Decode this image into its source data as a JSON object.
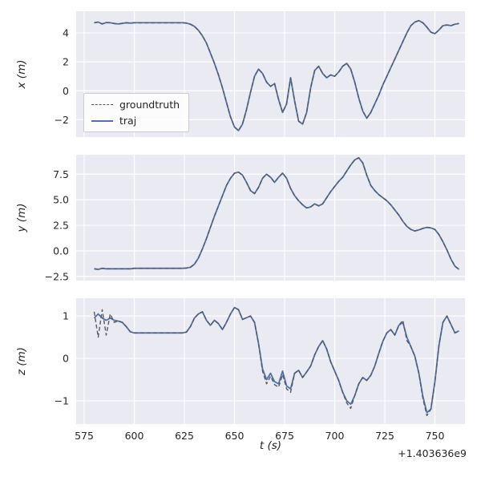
{
  "figure": {
    "background": "#ffffff",
    "axes_background": "#eaeaf2",
    "grid_color": "#ffffff",
    "tick_color": "#262626",
    "xlabel": "t (s)",
    "offset_text": "+1.403636e9",
    "legend": {
      "items": [
        {
          "label": "groundtruth",
          "color": "#5a5a5a",
          "dashed": true
        },
        {
          "label": "traj",
          "color": "#4c72b0",
          "dashed": false
        }
      ]
    }
  },
  "chart_data": [
    {
      "type": "line",
      "ylabel": "x (m)",
      "xlim": [
        571,
        765
      ],
      "ylim": [
        -3.2,
        5.5
      ],
      "xticks": [
        575,
        600,
        625,
        650,
        675,
        700,
        725,
        750
      ],
      "xtick_labels": [
        "575",
        "600",
        "625",
        "650",
        "675",
        "700",
        "725",
        "750"
      ],
      "yticks": [
        -2,
        0,
        2,
        4
      ],
      "ytick_labels": [
        "−2",
        "0",
        "2",
        "4"
      ],
      "show_xtick_labels": false,
      "x": [
        580,
        582,
        584,
        586,
        588,
        590,
        592,
        594,
        596,
        598,
        600,
        602,
        604,
        606,
        608,
        610,
        612,
        614,
        616,
        618,
        620,
        622,
        624,
        626,
        628,
        630,
        632,
        634,
        636,
        638,
        640,
        642,
        644,
        646,
        648,
        650,
        652,
        654,
        656,
        658,
        660,
        662,
        664,
        666,
        668,
        670,
        672,
        674,
        676,
        678,
        680,
        682,
        684,
        686,
        688,
        690,
        692,
        694,
        696,
        698,
        700,
        702,
        704,
        706,
        708,
        710,
        712,
        714,
        716,
        718,
        720,
        722,
        724,
        726,
        728,
        730,
        732,
        734,
        736,
        738,
        740,
        742,
        744,
        746,
        748,
        750,
        752,
        754,
        756,
        758,
        760,
        762
      ],
      "series": [
        {
          "name": "groundtruth",
          "color": "#5a5a5a",
          "dashed": true,
          "values": [
            4.7,
            4.75,
            4.62,
            4.72,
            4.7,
            4.65,
            4.62,
            4.66,
            4.7,
            4.68,
            4.7,
            4.7,
            4.7,
            4.7,
            4.7,
            4.7,
            4.7,
            4.7,
            4.7,
            4.7,
            4.7,
            4.7,
            4.7,
            4.68,
            4.6,
            4.45,
            4.18,
            3.8,
            3.3,
            2.6,
            1.9,
            1.1,
            0.2,
            -0.8,
            -1.8,
            -2.5,
            -2.75,
            -2.3,
            -1.3,
            -0.1,
            1.0,
            1.5,
            1.2,
            0.6,
            0.3,
            0.5,
            -0.6,
            -1.5,
            -0.9,
            0.9,
            -0.7,
            -2.1,
            -2.3,
            -1.5,
            0.2,
            1.4,
            1.7,
            1.2,
            0.9,
            1.1,
            1.0,
            1.3,
            1.7,
            1.9,
            1.5,
            0.6,
            -0.5,
            -1.4,
            -1.9,
            -1.5,
            -0.9,
            -0.3,
            0.4,
            1.0,
            1.6,
            2.2,
            2.8,
            3.4,
            4.0,
            4.5,
            4.75,
            4.85,
            4.7,
            4.4,
            4.05,
            3.95,
            4.2,
            4.5,
            4.55,
            4.5,
            4.6,
            4.65
          ]
        },
        {
          "name": "traj",
          "color": "#4c72b0",
          "dashed": false,
          "values": [
            4.7,
            4.75,
            4.62,
            4.72,
            4.7,
            4.65,
            4.62,
            4.66,
            4.7,
            4.68,
            4.7,
            4.7,
            4.7,
            4.7,
            4.7,
            4.7,
            4.7,
            4.7,
            4.7,
            4.7,
            4.7,
            4.7,
            4.7,
            4.68,
            4.6,
            4.45,
            4.18,
            3.8,
            3.3,
            2.6,
            1.9,
            1.1,
            0.2,
            -0.8,
            -1.8,
            -2.5,
            -2.75,
            -2.3,
            -1.3,
            -0.1,
            1.0,
            1.5,
            1.2,
            0.6,
            0.3,
            0.5,
            -0.6,
            -1.5,
            -0.9,
            0.9,
            -0.7,
            -2.1,
            -2.3,
            -1.5,
            0.2,
            1.4,
            1.7,
            1.2,
            0.9,
            1.1,
            1.0,
            1.3,
            1.7,
            1.9,
            1.5,
            0.6,
            -0.5,
            -1.4,
            -1.9,
            -1.5,
            -0.9,
            -0.3,
            0.4,
            1.0,
            1.6,
            2.2,
            2.8,
            3.4,
            4.0,
            4.5,
            4.75,
            4.85,
            4.7,
            4.4,
            4.05,
            3.95,
            4.2,
            4.5,
            4.55,
            4.5,
            4.6,
            4.65
          ]
        }
      ]
    },
    {
      "type": "line",
      "ylabel": "y (m)",
      "xlim": [
        571,
        765
      ],
      "ylim": [
        -2.9,
        9.4
      ],
      "xticks": [
        575,
        600,
        625,
        650,
        675,
        700,
        725,
        750
      ],
      "xtick_labels": [
        "575",
        "600",
        "625",
        "650",
        "675",
        "700",
        "725",
        "750"
      ],
      "yticks": [
        -2.5,
        0,
        2.5,
        5,
        7.5
      ],
      "ytick_labels": [
        "−2.5",
        "0.0",
        "2.5",
        "5.0",
        "7.5"
      ],
      "show_xtick_labels": false,
      "x": [
        580,
        582,
        584,
        586,
        588,
        590,
        592,
        594,
        596,
        598,
        600,
        602,
        604,
        606,
        608,
        610,
        612,
        614,
        616,
        618,
        620,
        622,
        624,
        626,
        628,
        630,
        632,
        634,
        636,
        638,
        640,
        642,
        644,
        646,
        648,
        650,
        652,
        654,
        656,
        658,
        660,
        662,
        664,
        666,
        668,
        670,
        672,
        674,
        676,
        678,
        680,
        682,
        684,
        686,
        688,
        690,
        692,
        694,
        696,
        698,
        700,
        702,
        704,
        706,
        708,
        710,
        712,
        714,
        716,
        718,
        720,
        722,
        724,
        726,
        728,
        730,
        732,
        734,
        736,
        738,
        740,
        742,
        744,
        746,
        748,
        750,
        752,
        754,
        756,
        758,
        760,
        762
      ],
      "series": [
        {
          "name": "groundtruth",
          "color": "#5a5a5a",
          "dashed": true,
          "values": [
            -1.75,
            -1.8,
            -1.7,
            -1.75,
            -1.75,
            -1.75,
            -1.75,
            -1.75,
            -1.75,
            -1.75,
            -1.7,
            -1.7,
            -1.7,
            -1.7,
            -1.7,
            -1.7,
            -1.7,
            -1.7,
            -1.7,
            -1.7,
            -1.7,
            -1.7,
            -1.7,
            -1.68,
            -1.6,
            -1.3,
            -0.7,
            0.2,
            1.2,
            2.3,
            3.4,
            4.4,
            5.4,
            6.4,
            7.1,
            7.6,
            7.7,
            7.4,
            6.7,
            5.9,
            5.6,
            6.2,
            7.1,
            7.5,
            7.2,
            6.7,
            7.2,
            7.6,
            7.1,
            6.1,
            5.4,
            4.9,
            4.5,
            4.2,
            4.3,
            4.6,
            4.4,
            4.6,
            5.2,
            5.8,
            6.3,
            6.8,
            7.2,
            7.8,
            8.4,
            8.9,
            9.1,
            8.6,
            7.4,
            6.4,
            5.9,
            5.5,
            5.2,
            4.9,
            4.5,
            4.0,
            3.5,
            2.9,
            2.4,
            2.1,
            1.95,
            2.05,
            2.2,
            2.3,
            2.25,
            2.1,
            1.6,
            0.9,
            0.1,
            -0.8,
            -1.5,
            -1.8
          ]
        },
        {
          "name": "traj",
          "color": "#4c72b0",
          "dashed": false,
          "values": [
            -1.75,
            -1.8,
            -1.7,
            -1.75,
            -1.75,
            -1.75,
            -1.75,
            -1.75,
            -1.75,
            -1.75,
            -1.7,
            -1.7,
            -1.7,
            -1.7,
            -1.7,
            -1.7,
            -1.7,
            -1.7,
            -1.7,
            -1.7,
            -1.7,
            -1.7,
            -1.7,
            -1.68,
            -1.6,
            -1.3,
            -0.7,
            0.2,
            1.2,
            2.3,
            3.4,
            4.4,
            5.4,
            6.4,
            7.1,
            7.6,
            7.7,
            7.4,
            6.7,
            5.9,
            5.6,
            6.2,
            7.1,
            7.5,
            7.2,
            6.7,
            7.2,
            7.6,
            7.1,
            6.1,
            5.4,
            4.9,
            4.5,
            4.2,
            4.3,
            4.6,
            4.4,
            4.6,
            5.2,
            5.8,
            6.3,
            6.8,
            7.2,
            7.8,
            8.4,
            8.9,
            9.1,
            8.6,
            7.4,
            6.4,
            5.9,
            5.5,
            5.2,
            4.9,
            4.5,
            4.0,
            3.5,
            2.9,
            2.4,
            2.1,
            1.95,
            2.05,
            2.2,
            2.3,
            2.25,
            2.1,
            1.6,
            0.9,
            0.1,
            -0.8,
            -1.5,
            -1.8
          ]
        }
      ]
    },
    {
      "type": "line",
      "ylabel": "z (m)",
      "xlim": [
        571,
        765
      ],
      "ylim": [
        -1.55,
        1.42
      ],
      "xticks": [
        575,
        600,
        625,
        650,
        675,
        700,
        725,
        750
      ],
      "xtick_labels": [
        "575",
        "600",
        "625",
        "650",
        "675",
        "700",
        "725",
        "750"
      ],
      "yticks": [
        -1,
        0,
        1
      ],
      "ytick_labels": [
        "−1",
        "0",
        "1"
      ],
      "show_xtick_labels": true,
      "x": [
        580,
        582,
        584,
        586,
        588,
        590,
        592,
        594,
        596,
        598,
        600,
        602,
        604,
        606,
        608,
        610,
        612,
        614,
        616,
        618,
        620,
        622,
        624,
        626,
        628,
        630,
        632,
        634,
        636,
        638,
        640,
        642,
        644,
        646,
        648,
        650,
        652,
        654,
        656,
        658,
        660,
        662,
        664,
        666,
        668,
        670,
        672,
        674,
        676,
        678,
        680,
        682,
        684,
        686,
        688,
        690,
        692,
        694,
        696,
        698,
        700,
        702,
        704,
        706,
        708,
        710,
        712,
        714,
        716,
        718,
        720,
        722,
        724,
        726,
        728,
        730,
        732,
        734,
        736,
        738,
        740,
        742,
        744,
        746,
        748,
        750,
        752,
        754,
        756,
        758,
        760,
        762
      ],
      "series": [
        {
          "name": "groundtruth",
          "color": "#5a5a5a",
          "dashed": true,
          "values": [
            1.1,
            0.5,
            1.15,
            0.55,
            1.05,
            0.85,
            0.88,
            0.85,
            0.75,
            0.63,
            0.6,
            0.6,
            0.6,
            0.6,
            0.6,
            0.6,
            0.6,
            0.6,
            0.6,
            0.6,
            0.6,
            0.6,
            0.6,
            0.62,
            0.75,
            0.95,
            1.05,
            1.1,
            0.9,
            0.78,
            0.9,
            0.82,
            0.68,
            0.85,
            1.05,
            1.2,
            1.15,
            0.92,
            0.96,
            1.0,
            0.85,
            0.35,
            -0.3,
            -0.6,
            -0.42,
            -0.62,
            -0.68,
            -0.38,
            -0.72,
            -0.8,
            -0.35,
            -0.28,
            -0.45,
            -0.32,
            -0.18,
            0.08,
            0.28,
            0.42,
            0.22,
            -0.08,
            -0.3,
            -0.52,
            -0.8,
            -1.05,
            -1.18,
            -0.88,
            -0.6,
            -0.45,
            -0.52,
            -0.4,
            -0.18,
            0.12,
            0.4,
            0.6,
            0.68,
            0.55,
            0.78,
            0.9,
            0.42,
            0.28,
            0.05,
            -0.35,
            -0.95,
            -1.35,
            -1.2,
            -0.55,
            0.3,
            0.85,
            1.0,
            0.8,
            0.6,
            0.65
          ]
        },
        {
          "name": "traj",
          "color": "#4c72b0",
          "dashed": false,
          "values": [
            0.95,
            1.05,
            0.95,
            0.9,
            0.95,
            0.9,
            0.88,
            0.85,
            0.75,
            0.63,
            0.6,
            0.6,
            0.6,
            0.6,
            0.6,
            0.6,
            0.6,
            0.6,
            0.6,
            0.6,
            0.6,
            0.6,
            0.6,
            0.62,
            0.75,
            0.95,
            1.05,
            1.1,
            0.9,
            0.78,
            0.9,
            0.82,
            0.68,
            0.85,
            1.05,
            1.2,
            1.15,
            0.92,
            0.96,
            1.0,
            0.85,
            0.35,
            -0.25,
            -0.5,
            -0.35,
            -0.55,
            -0.6,
            -0.3,
            -0.65,
            -0.72,
            -0.35,
            -0.28,
            -0.45,
            -0.32,
            -0.18,
            0.08,
            0.28,
            0.42,
            0.22,
            -0.08,
            -0.3,
            -0.52,
            -0.8,
            -1.0,
            -1.08,
            -0.88,
            -0.6,
            -0.45,
            -0.52,
            -0.4,
            -0.18,
            0.12,
            0.4,
            0.6,
            0.68,
            0.55,
            0.78,
            0.85,
            0.5,
            0.28,
            0.05,
            -0.35,
            -0.9,
            -1.28,
            -1.2,
            -0.55,
            0.3,
            0.85,
            1.0,
            0.8,
            0.6,
            0.65
          ]
        }
      ]
    }
  ]
}
